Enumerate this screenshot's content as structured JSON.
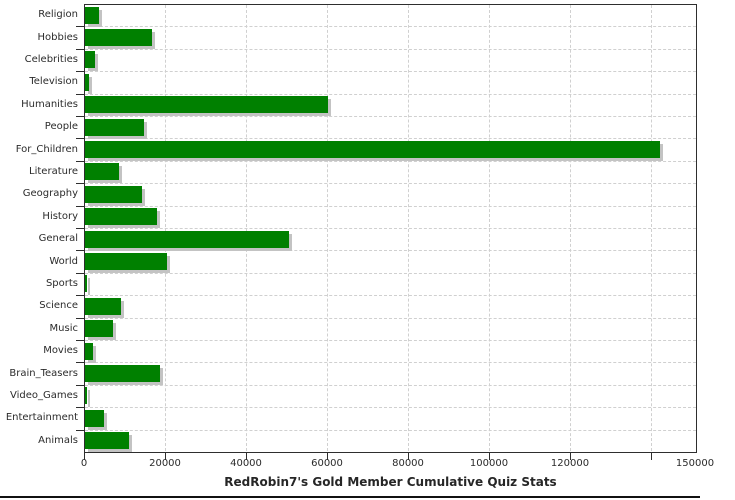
{
  "chart_data": {
    "type": "bar",
    "orientation": "horizontal",
    "title": "RedRobin7's Gold Member Cumulative Quiz Stats",
    "categories": [
      "Religion",
      "Hobbies",
      "Celebrities",
      "Television",
      "Humanities",
      "People",
      "For_Children",
      "Literature",
      "Geography",
      "History",
      "General",
      "World",
      "Sports",
      "Science",
      "Music",
      "Movies",
      "Brain_Teasers",
      "Video_Games",
      "Entertainment",
      "Animals"
    ],
    "values": [
      3500,
      16600,
      2500,
      1100,
      59900,
      14600,
      142000,
      8500,
      14000,
      17800,
      50300,
      20300,
      400,
      9000,
      6900,
      1900,
      18400,
      400,
      4600,
      10900
    ],
    "xlim": [
      0,
      150000
    ],
    "x_ticks": [
      0,
      20000,
      40000,
      60000,
      80000,
      100000,
      120000,
      140000
    ],
    "x_tick_labels": [
      "0",
      "20000",
      "40000",
      "60000",
      "80000",
      "100000",
      "120000"
    ],
    "x_axis_end_tick_label": "150000",
    "grid": "dashed",
    "legend": "none",
    "bar_color": "#008000",
    "bar_shadow_color": "#c3c3c3",
    "grid_color": "#d0d0d0",
    "axis_color": "#2e2e2e",
    "text_color": "#2b2b2b"
  }
}
